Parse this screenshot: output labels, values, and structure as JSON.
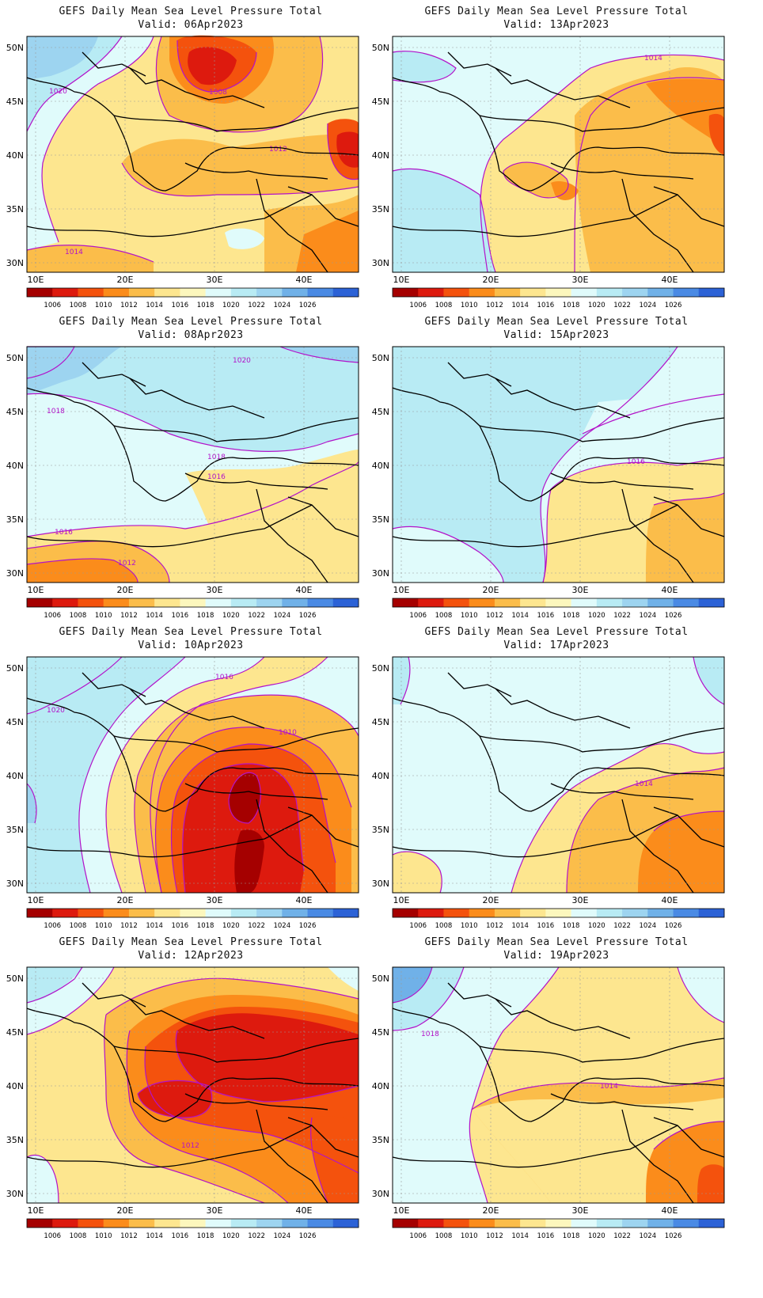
{
  "colorbar": {
    "labels": [
      "1006",
      "1008",
      "1010",
      "1012",
      "1014",
      "1016",
      "1018",
      "1020",
      "1022",
      "1024",
      "1026"
    ],
    "colors": [
      "#a50000",
      "#dd1a0e",
      "#f4520d",
      "#fb8c1b",
      "#fbbd4a",
      "#fde68f",
      "#fcf7bd",
      "#e0fbfb",
      "#b8ebf4",
      "#9dd4f0",
      "#70b1e8",
      "#4a8ae4",
      "#2c62d6"
    ]
  },
  "axes": {
    "lon_labels": [
      "10E",
      "20E",
      "30E",
      "40E"
    ],
    "lat_labels": [
      "50N",
      "45N",
      "40N",
      "35N",
      "30N"
    ]
  },
  "isoline_color": "#b312c9",
  "panels": [
    {
      "title": "GEFS Daily Mean Sea Level Pressure Total",
      "valid": "Valid: 06Apr2023",
      "contour_labels": [
        "1020",
        "1008",
        "1012",
        "1014"
      ]
    },
    {
      "title": "GEFS Daily Mean Sea Level Pressure Total",
      "valid": "Valid: 13Apr2023",
      "contour_labels": [
        "1014"
      ]
    },
    {
      "title": "GEFS Daily Mean Sea Level Pressure Total",
      "valid": "Valid: 08Apr2023",
      "contour_labels": [
        "1020",
        "1018",
        "1018",
        "1016",
        "1016",
        "1012"
      ]
    },
    {
      "title": "GEFS Daily Mean Sea Level Pressure Total",
      "valid": "Valid: 15Apr2023",
      "contour_labels": [
        "1016"
      ]
    },
    {
      "title": "GEFS Daily Mean Sea Level Pressure Total",
      "valid": "Valid: 10Apr2023",
      "contour_labels": [
        "1016",
        "1020",
        "1010"
      ]
    },
    {
      "title": "GEFS Daily Mean Sea Level Pressure Total",
      "valid": "Valid: 17Apr2023",
      "contour_labels": [
        "1014"
      ]
    },
    {
      "title": "GEFS Daily Mean Sea Level Pressure Total",
      "valid": "Valid: 12Apr2023",
      "contour_labels": [
        "1012"
      ]
    },
    {
      "title": "GEFS Daily Mean Sea Level Pressure Total",
      "valid": "Valid: 19Apr2023",
      "contour_labels": [
        "1018",
        "1014"
      ]
    }
  ]
}
